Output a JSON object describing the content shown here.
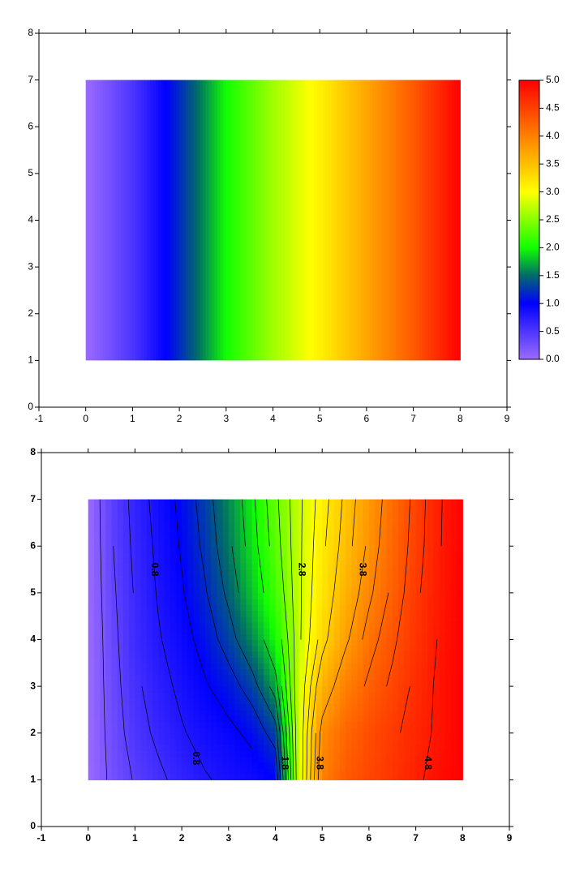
{
  "chart_data": [
    {
      "type": "heatmap",
      "x": [
        0,
        1,
        2,
        3,
        4,
        5,
        6,
        7,
        8
      ],
      "y": [
        1,
        7
      ],
      "values": [
        0,
        0.5,
        1.2,
        2.0,
        2.6,
        3.1,
        3.7,
        4.3,
        5.0
      ],
      "colorscale": [
        {
          "value": 0,
          "color": "#9b6bff"
        },
        {
          "value": 1,
          "color": "#0000ff"
        },
        {
          "value": 1.5,
          "color": "#006a6a"
        },
        {
          "value": 2,
          "color": "#10ff00"
        },
        {
          "value": 3,
          "color": "#ffff00"
        },
        {
          "value": 4,
          "color": "#ff8000"
        },
        {
          "value": 5,
          "color": "#ff0000"
        }
      ],
      "xlim": [
        -1,
        9
      ],
      "ylim": [
        0,
        8
      ],
      "xticks": [
        -1,
        0,
        1,
        2,
        3,
        4,
        5,
        6,
        7,
        8,
        9
      ],
      "yticks": [
        0,
        1,
        2,
        3,
        4,
        5,
        6,
        7,
        8
      ],
      "colorbar": true,
      "clim": [
        0,
        5
      ],
      "cticks": [
        {
          "value": 0,
          "label": "0.0"
        },
        0.5,
        {
          "value": 1,
          "label": "1.0"
        },
        1.5,
        {
          "value": 2,
          "label": "2.0"
        },
        2.5,
        {
          "value": 3,
          "label": "3.0"
        },
        3.5,
        {
          "value": 4,
          "label": "4.0"
        },
        4.5,
        {
          "value": 5,
          "label": "5.0"
        }
      ]
    },
    {
      "type": "contour",
      "x": [
        0,
        0.5,
        1,
        1.5,
        2,
        2.5,
        3,
        3.5,
        4,
        4.5,
        5,
        5.5,
        6,
        6.5,
        7,
        7.5,
        8
      ],
      "y": [
        1,
        2,
        3,
        4,
        5,
        6,
        7
      ],
      "z": [
        [
          0,
          0.25,
          0.42,
          0.55,
          0.68,
          0.78,
          0.85,
          0.9,
          1.0,
          2.8,
          4.0,
          4.3,
          4.45,
          4.6,
          4.75,
          4.9,
          5.0
        ],
        [
          0,
          0.28,
          0.5,
          0.65,
          0.78,
          0.88,
          0.95,
          1.05,
          1.3,
          2.8,
          3.9,
          4.2,
          4.4,
          4.55,
          4.7,
          4.85,
          5.0
        ],
        [
          0,
          0.3,
          0.55,
          0.72,
          0.85,
          0.98,
          1.1,
          1.3,
          1.7,
          2.8,
          3.6,
          4.0,
          4.25,
          4.45,
          4.65,
          4.85,
          5.0
        ],
        [
          0,
          0.32,
          0.6,
          0.78,
          0.92,
          1.08,
          1.3,
          1.6,
          2.0,
          2.75,
          3.3,
          3.75,
          4.1,
          4.35,
          4.6,
          4.82,
          5.0
        ],
        [
          0,
          0.35,
          0.62,
          0.82,
          0.98,
          1.18,
          1.45,
          1.8,
          2.2,
          2.75,
          3.2,
          3.6,
          3.95,
          4.25,
          4.55,
          4.8,
          5.0
        ],
        [
          0,
          0.38,
          0.65,
          0.85,
          1.02,
          1.25,
          1.55,
          1.9,
          2.3,
          2.75,
          3.15,
          3.5,
          3.85,
          4.2,
          4.5,
          4.78,
          5.0
        ],
        [
          0,
          0.4,
          0.68,
          0.88,
          1.05,
          1.3,
          1.6,
          1.95,
          2.35,
          2.75,
          3.1,
          3.45,
          3.8,
          4.15,
          4.48,
          4.77,
          5.0
        ]
      ],
      "colorscale": [
        {
          "value": 0,
          "color": "#9b6bff"
        },
        {
          "value": 1,
          "color": "#0000ff"
        },
        {
          "value": 1.5,
          "color": "#006a6a"
        },
        {
          "value": 2,
          "color": "#10ff00"
        },
        {
          "value": 3,
          "color": "#ffff00"
        },
        {
          "value": 4,
          "color": "#ff8000"
        },
        {
          "value": 5,
          "color": "#ff0000"
        }
      ],
      "levels": [
        0.2,
        0.4,
        0.6,
        0.8,
        1.0,
        1.2,
        1.4,
        1.6,
        1.8,
        2.0,
        2.2,
        2.4,
        2.6,
        2.8,
        3.0,
        3.2,
        3.4,
        3.6,
        3.8,
        4.0,
        4.2,
        4.4,
        4.6,
        4.8
      ],
      "labeled_levels": [
        0.8,
        1.8,
        2.8,
        3.8,
        4.8
      ],
      "xlim": [
        -1,
        9
      ],
      "ylim": [
        0,
        8
      ],
      "xticks": [
        -1,
        0,
        1,
        2,
        3,
        4,
        5,
        6,
        7,
        8,
        9
      ],
      "yticks": [
        0,
        1,
        2,
        3,
        4,
        5,
        6,
        7,
        8
      ]
    }
  ]
}
